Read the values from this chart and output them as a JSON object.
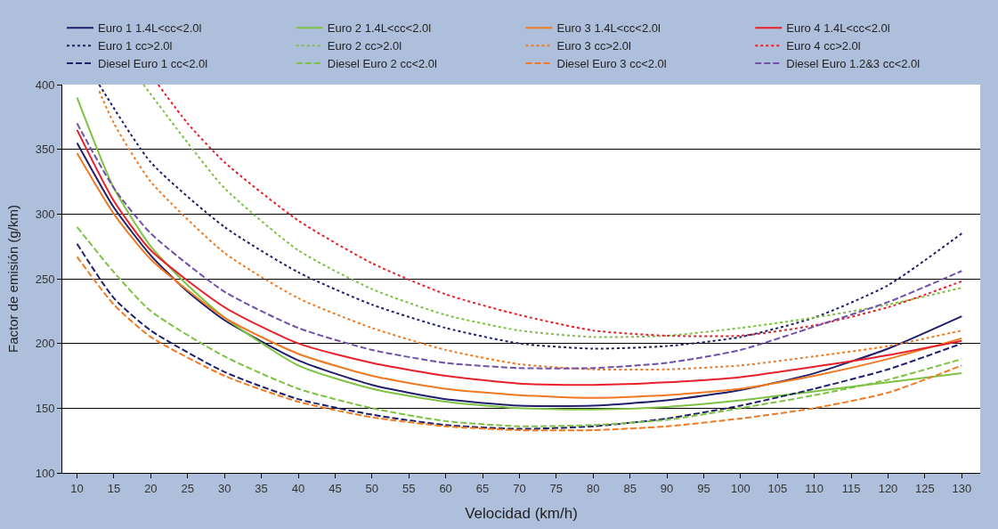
{
  "chart_data": {
    "type": "line",
    "xlabel": "Velocidad (km/h)",
    "ylabel": "Factor de emisión (g/km)",
    "xlim": [
      8,
      132.5
    ],
    "xticks": [
      10,
      15,
      20,
      25,
      30,
      35,
      40,
      45,
      50,
      55,
      60,
      65,
      70,
      75,
      80,
      85,
      90,
      95,
      100,
      105,
      110,
      115,
      120,
      125,
      130
    ],
    "ylim": [
      100,
      400
    ],
    "yticks": [
      100,
      150,
      200,
      250,
      300,
      350,
      400
    ],
    "grid": "y",
    "legend": "top",
    "marker": "none",
    "series": [
      {
        "name": "Euro 1 1.4L<cc<2.0l",
        "color": "#1f1f6b",
        "line_style": "solid",
        "x": [
          10,
          15,
          20,
          25,
          30,
          40,
          50,
          60,
          70,
          80,
          90,
          100,
          110,
          120,
          130
        ],
        "values": [
          355,
          305,
          268,
          240,
          218,
          187,
          168,
          157,
          152,
          152,
          156,
          164,
          177,
          196,
          221
        ]
      },
      {
        "name": "Euro 2 1.4L<cc<2.0l",
        "color": "#7dc242",
        "line_style": "solid",
        "x": [
          10,
          15,
          20,
          25,
          30,
          40,
          50,
          60,
          70,
          80,
          90,
          100,
          110,
          120,
          130
        ],
        "values": [
          390,
          320,
          275,
          245,
          220,
          183,
          165,
          155,
          150,
          149,
          151,
          156,
          163,
          170,
          177
        ]
      },
      {
        "name": "Euro 3 1.4L<cc<2.0l",
        "color": "#f07a22",
        "line_style": "solid",
        "x": [
          10,
          15,
          20,
          30,
          40,
          50,
          60,
          70,
          80,
          90,
          100,
          110,
          120,
          130
        ],
        "values": [
          347,
          300,
          265,
          220,
          192,
          175,
          165,
          160,
          158,
          160,
          165,
          175,
          188,
          204
        ]
      },
      {
        "name": "Euro 4 1.4L<cc<2.0l",
        "color": "#e8202a",
        "line_style": "solid",
        "x": [
          10,
          15,
          20,
          30,
          40,
          50,
          60,
          70,
          80,
          90,
          100,
          110,
          120,
          130
        ],
        "values": [
          365,
          310,
          272,
          228,
          200,
          185,
          175,
          169,
          168,
          170,
          174,
          182,
          191,
          202
        ]
      },
      {
        "name": "Euro 1 cc>2.0l",
        "color": "#1f1f6b",
        "line_style": "dotted",
        "x": [
          13,
          20,
          30,
          40,
          50,
          60,
          70,
          80,
          90,
          100,
          110,
          120,
          130
        ],
        "values": [
          400,
          340,
          290,
          255,
          230,
          212,
          200,
          196,
          198,
          205,
          220,
          245,
          285
        ]
      },
      {
        "name": "Euro 2 cc>2.0l",
        "color": "#7dc242",
        "line_style": "dotted",
        "x": [
          19,
          25,
          30,
          40,
          50,
          60,
          70,
          80,
          90,
          100,
          110,
          120,
          130
        ],
        "values": [
          400,
          355,
          320,
          272,
          242,
          222,
          210,
          205,
          206,
          212,
          220,
          230,
          243
        ]
      },
      {
        "name": "Euro 3 cc>2.0l",
        "color": "#f07a22",
        "line_style": "dotted",
        "x": [
          13,
          15,
          20,
          30,
          40,
          50,
          60,
          70,
          80,
          90,
          100,
          110,
          120,
          130
        ],
        "values": [
          395,
          370,
          325,
          270,
          235,
          212,
          195,
          184,
          180,
          180,
          183,
          190,
          198,
          210
        ]
      },
      {
        "name": "Euro 4 cc>2.0l",
        "color": "#e8202a",
        "line_style": "dotted",
        "x": [
          21,
          25,
          30,
          40,
          50,
          60,
          70,
          80,
          90,
          100,
          110,
          120,
          130
        ],
        "values": [
          400,
          370,
          340,
          295,
          262,
          238,
          222,
          210,
          206,
          206,
          214,
          228,
          248
        ]
      },
      {
        "name": "Diesel Euro 1 cc<2.0l",
        "color": "#1f1f6b",
        "line_style": "dashed",
        "x": [
          10,
          15,
          20,
          30,
          40,
          50,
          60,
          70,
          80,
          90,
          100,
          110,
          120,
          130
        ],
        "values": [
          277,
          235,
          210,
          178,
          157,
          145,
          137,
          134,
          136,
          142,
          152,
          165,
          180,
          200
        ]
      },
      {
        "name": "Diesel Euro 2 cc<2.0l",
        "color": "#7dc242",
        "line_style": "dashed",
        "x": [
          10,
          15,
          20,
          30,
          40,
          50,
          60,
          70,
          80,
          90,
          100,
          110,
          120,
          130
        ],
        "values": [
          290,
          255,
          225,
          190,
          165,
          150,
          140,
          136,
          137,
          141,
          150,
          160,
          172,
          188
        ]
      },
      {
        "name": "Diesel Euro 3 cc<2.0l",
        "color": "#f07a22",
        "line_style": "dashed",
        "x": [
          10,
          15,
          20,
          30,
          40,
          50,
          60,
          70,
          80,
          90,
          100,
          110,
          120,
          130
        ],
        "values": [
          267,
          230,
          205,
          175,
          155,
          143,
          136,
          133,
          133,
          136,
          142,
          150,
          162,
          183
        ]
      },
      {
        "name": "Diesel Euro 1.2&3 cc<2.0l",
        "color": "#7050a8",
        "line_style": "dashed",
        "x": [
          10,
          15,
          20,
          30,
          40,
          50,
          60,
          70,
          80,
          90,
          100,
          110,
          120,
          130
        ],
        "values": [
          370,
          320,
          285,
          240,
          212,
          195,
          185,
          181,
          181,
          185,
          195,
          213,
          232,
          256
        ]
      }
    ]
  }
}
